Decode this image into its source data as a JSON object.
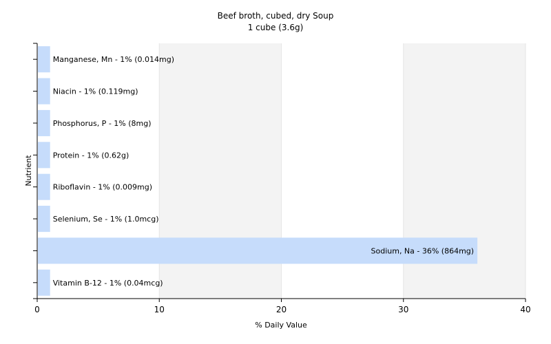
{
  "chart_data": {
    "type": "bar",
    "orientation": "horizontal",
    "title": "Beef broth, cubed, dry Soup",
    "subtitle": "1 cube (3.6g)",
    "xlabel": "% Daily Value",
    "ylabel": "Nutrient",
    "xlim": [
      0,
      40
    ],
    "xticks": [
      "0",
      "10",
      "20",
      "30",
      "40"
    ],
    "grid": true,
    "categories": [
      "Manganese, Mn",
      "Niacin",
      "Phosphorus, P",
      "Protein",
      "Riboflavin",
      "Selenium, Se",
      "Sodium, Na",
      "Vitamin B-12"
    ],
    "values": [
      1,
      1,
      1,
      1,
      1,
      1,
      36,
      1
    ],
    "labels": [
      "Manganese, Mn - 1% (0.014mg)",
      "Niacin - 1% (0.119mg)",
      "Phosphorus, P - 1% (8mg)",
      "Protein - 1% (0.62g)",
      "Riboflavin - 1% (0.009mg)",
      "Selenium, Se - 1% (1.0mcg)",
      "Sodium, Na - 36% (864mg)",
      "Vitamin B-12 - 1% (0.04mcg)"
    ],
    "colors": {
      "bar": "#c6dcfb",
      "axis": "#000000",
      "grid": "#e6e6e6",
      "band_light": "#ffffff",
      "band_dark": "#f3f3f3"
    }
  }
}
